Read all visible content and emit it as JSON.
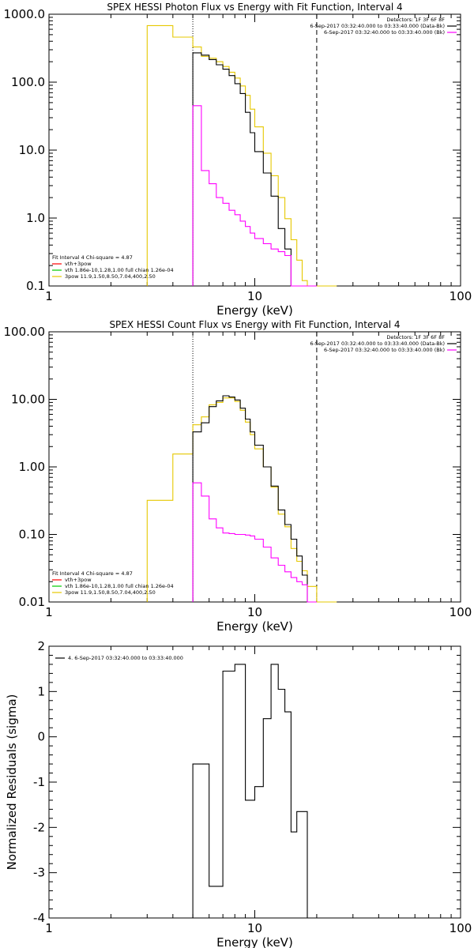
{
  "chart_data": [
    {
      "type": "line",
      "title": "SPEX HESSI Photon Flux vs Energy with Fit Function, Interval 4",
      "xlabel": "Energy (keV)",
      "ylabel": "",
      "xscale": "log",
      "yscale": "log",
      "xlim": [
        1,
        100
      ],
      "ylim": [
        0.1,
        1000
      ],
      "x_tick_labels": [
        {
          "v": 1,
          "t": "1"
        },
        {
          "v": 10,
          "t": "10"
        },
        {
          "v": 100,
          "t": "100"
        }
      ],
      "y_tick_labels": [
        {
          "v": 0.1,
          "t": "0.1"
        },
        {
          "v": 1,
          "t": "1.0"
        },
        {
          "v": 10,
          "t": "10.0"
        },
        {
          "v": 100,
          "t": "100.0"
        },
        {
          "v": 1000,
          "t": "1000.0"
        }
      ],
      "vlines": [
        {
          "x": 5.0,
          "style": "dotted"
        },
        {
          "x": 20.0,
          "style": "dashed"
        }
      ],
      "legend_top_right": [
        {
          "text": "Detectors: 1F 3F 6F 8F",
          "color": ""
        },
        {
          "text": "6-Sep-2017 03:32:40.000 to 03:33:40.000 (Data-Bk)",
          "color": "#000000"
        },
        {
          "text": "6-Sep-2017 03:32:40.000 to 03:33:40.000 (Bk)",
          "color": "#ff00ff"
        }
      ],
      "legend_bottom_left": [
        {
          "text": "Fit Interval 4   Chi-square = 4.87",
          "color": ""
        },
        {
          "text": "vth+3pow",
          "color": "#ff0000"
        },
        {
          "text": "vth 1.86e-10,1.28,1.00  full chian 1.26e-04",
          "color": "#00cc00"
        },
        {
          "text": "3pow 11.9,1.50,8.50,7.04,400,2.50",
          "color": "#e6c800"
        }
      ],
      "series": [
        {
          "color": "#e6c800",
          "edges": [
            3.0,
            4.0,
            5.0,
            5.5,
            6.0,
            6.5,
            7.0,
            7.5,
            8.0,
            8.5,
            9.0,
            9.5,
            10.0,
            11.0,
            12.0,
            13.0,
            14.0,
            15.0,
            16.0,
            17.0,
            18.0,
            20.0,
            22.0,
            25.0
          ],
          "values": [
            680,
            460,
            330,
            240,
            225,
            200,
            170,
            140,
            115,
            88,
            64,
            40,
            22,
            9.0,
            4.2,
            2.0,
            0.98,
            0.48,
            0.24,
            0.12,
            0.1,
            0.1,
            0.1
          ]
        },
        {
          "color": "#000000",
          "edges": [
            5.0,
            5.5,
            6.0,
            6.5,
            7.0,
            7.5,
            8.0,
            8.5,
            9.0,
            9.5,
            10.0,
            11.0,
            12.0,
            13.0,
            14.0,
            15.0,
            16.0,
            17.0,
            18.0,
            20.0
          ],
          "values": [
            270,
            250,
            215,
            180,
            155,
            125,
            95,
            68,
            36,
            18,
            9.5,
            4.6,
            2.1,
            0.7,
            0.35,
            0.1,
            0.1,
            0.1,
            0.1
          ]
        },
        {
          "color": "#ff00ff",
          "edges": [
            5.0,
            5.5,
            6.0,
            6.5,
            7.0,
            7.5,
            8.0,
            8.5,
            9.0,
            9.5,
            10.0,
            11.0,
            12.0,
            13.0,
            14.0,
            15.0,
            16.0,
            17.0,
            18.0,
            20.0
          ],
          "values": [
            45,
            5.0,
            3.2,
            2.0,
            1.65,
            1.3,
            1.12,
            0.9,
            0.75,
            0.6,
            0.5,
            0.42,
            0.35,
            0.32,
            0.28,
            0.1,
            0.1,
            0.1,
            0.1
          ]
        }
      ]
    },
    {
      "type": "line",
      "title": "SPEX HESSI Count Flux vs Energy with Fit Function, Interval 4",
      "xlabel": "Energy (keV)",
      "ylabel": "",
      "xscale": "log",
      "yscale": "log",
      "xlim": [
        1,
        100
      ],
      "ylim": [
        0.01,
        100
      ],
      "x_tick_labels": [
        {
          "v": 1,
          "t": "1"
        },
        {
          "v": 10,
          "t": "10"
        },
        {
          "v": 100,
          "t": "100"
        }
      ],
      "y_tick_labels": [
        {
          "v": 0.01,
          "t": "0.01"
        },
        {
          "v": 0.1,
          "t": "0.10"
        },
        {
          "v": 1,
          "t": "1.00"
        },
        {
          "v": 10,
          "t": "10.00"
        },
        {
          "v": 100,
          "t": "100.00"
        }
      ],
      "vlines": [
        {
          "x": 5.0,
          "style": "dotted"
        },
        {
          "x": 20.0,
          "style": "dashed"
        }
      ],
      "legend_top_right": [
        {
          "text": "Detectors: 1F 3F 6F 8F",
          "color": ""
        },
        {
          "text": "6-Sep-2017 03:32:40.000 to 03:33:40.000 (Data-Bk)",
          "color": "#000000"
        },
        {
          "text": "6-Sep-2017 03:32:40.000 to 03:33:40.000 (Bk)",
          "color": "#ff00ff"
        }
      ],
      "legend_bottom_left": [
        {
          "text": "Fit Interval 4   Chi-square = 4.87",
          "color": ""
        },
        {
          "text": "vth+3pow",
          "color": "#ff0000"
        },
        {
          "text": "vth 1.86e-10,1.28,1.00  full chian 1.26e-04",
          "color": "#00cc00"
        },
        {
          "text": "3pow 11.9,1.50,8.50,7.04,400,2.50",
          "color": "#e6c800"
        }
      ],
      "series": [
        {
          "color": "#e6c800",
          "edges": [
            3.0,
            4.0,
            5.0,
            5.5,
            6.0,
            6.5,
            7.0,
            7.5,
            8.0,
            8.5,
            9.0,
            9.5,
            10.0,
            11.0,
            12.0,
            13.0,
            14.0,
            15.0,
            16.0,
            17.0,
            18.0,
            20.0,
            22.0,
            25.0
          ],
          "values": [
            0.32,
            1.55,
            4.2,
            5.5,
            8.3,
            9.0,
            10.5,
            10.5,
            9.3,
            6.9,
            4.6,
            3.0,
            1.85,
            1.0,
            0.5,
            0.2,
            0.13,
            0.062,
            0.04,
            0.029,
            0.017,
            0.01,
            0.01
          ]
        },
        {
          "color": "#000000",
          "edges": [
            5.0,
            5.5,
            6.0,
            6.5,
            7.0,
            7.5,
            8.0,
            8.5,
            9.0,
            9.5,
            10.0,
            11.0,
            12.0,
            13.0,
            14.0,
            15.0,
            16.0,
            17.0,
            18.0,
            20.0
          ],
          "values": [
            3.3,
            4.5,
            7.8,
            9.5,
            11.3,
            10.8,
            9.8,
            7.4,
            5.1,
            3.3,
            2.1,
            1.0,
            0.52,
            0.23,
            0.14,
            0.085,
            0.048,
            0.025,
            0.01
          ]
        },
        {
          "color": "#ff00ff",
          "edges": [
            5.0,
            5.5,
            6.0,
            6.5,
            7.0,
            7.5,
            8.0,
            8.5,
            9.0,
            9.5,
            10.0,
            11.0,
            12.0,
            13.0,
            14.0,
            15.0,
            16.0,
            17.0,
            18.0,
            20.0
          ],
          "values": [
            0.58,
            0.37,
            0.17,
            0.125,
            0.105,
            0.103,
            0.1,
            0.1,
            0.098,
            0.095,
            0.085,
            0.065,
            0.045,
            0.035,
            0.028,
            0.023,
            0.02,
            0.018,
            0.01
          ]
        }
      ]
    },
    {
      "type": "line",
      "title": "",
      "xlabel": "Energy (keV)",
      "ylabel": "Normalized Residuals (sigma)",
      "xscale": "log",
      "yscale": "linear",
      "xlim": [
        1,
        100
      ],
      "ylim": [
        -4,
        2
      ],
      "x_tick_labels": [
        {
          "v": 1,
          "t": "1"
        },
        {
          "v": 10,
          "t": "10"
        },
        {
          "v": 100,
          "t": "100"
        }
      ],
      "y_tick_labels": [
        {
          "v": -4,
          "t": "-4"
        },
        {
          "v": -3,
          "t": "-3"
        },
        {
          "v": -2,
          "t": "-2"
        },
        {
          "v": -1,
          "t": "-1"
        },
        {
          "v": 0,
          "t": "0"
        },
        {
          "v": 1,
          "t": "1"
        },
        {
          "v": 2,
          "t": "2"
        }
      ],
      "legend_top_left": [
        {
          "text": "4.  6-Sep-2017 03:32:40.000 to 03:33:40.000",
          "color": "#000000"
        }
      ],
      "series": [
        {
          "color": "#000000",
          "edges": [
            5.0,
            6.0,
            7.0,
            8.0,
            9.0,
            10.0,
            11.0,
            12.0,
            13.0,
            14.0,
            15.0,
            16.0,
            18.0,
            20.0
          ],
          "values": [
            -0.6,
            -3.3,
            1.45,
            1.6,
            -1.4,
            -1.1,
            0.4,
            1.6,
            1.05,
            0.55,
            -2.1,
            -1.65,
            -4
          ]
        }
      ]
    }
  ]
}
